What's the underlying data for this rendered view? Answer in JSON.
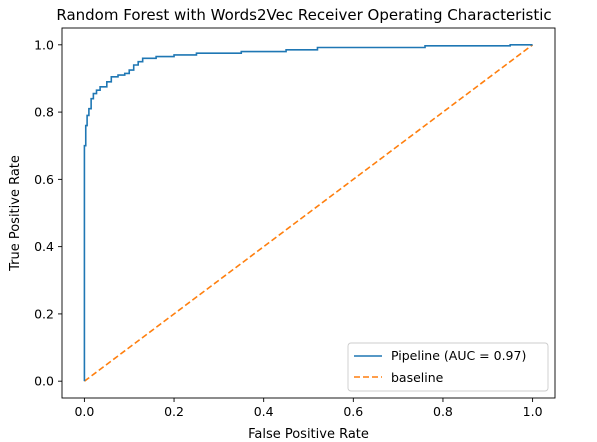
{
  "chart_data": {
    "type": "line",
    "title": "Random Forest with Words2Vec Receiver Operating Characteristic",
    "xlabel": "False Positive Rate",
    "ylabel": "True Positive Rate",
    "xlim": [
      -0.05,
      1.05
    ],
    "ylim": [
      -0.05,
      1.05
    ],
    "x_ticks": [
      "0.0",
      "0.2",
      "0.4",
      "0.6",
      "0.8",
      "1.0"
    ],
    "y_ticks": [
      "0.0",
      "0.2",
      "0.4",
      "0.6",
      "0.8",
      "1.0"
    ],
    "x_tick_values": [
      0,
      0.2,
      0.4,
      0.6,
      0.8,
      1.0
    ],
    "y_tick_values": [
      0,
      0.2,
      0.4,
      0.6,
      0.8,
      1.0
    ],
    "grid": false,
    "legend_position": "lower-right",
    "series": [
      {
        "name": "Pipeline (AUC = 0.97)",
        "style": "step",
        "color": "#1f77b4",
        "points": [
          [
            0,
            0
          ],
          [
            0,
            0.7
          ],
          [
            0.003,
            0.7
          ],
          [
            0.003,
            0.76
          ],
          [
            0.006,
            0.76
          ],
          [
            0.006,
            0.79
          ],
          [
            0.01,
            0.79
          ],
          [
            0.01,
            0.81
          ],
          [
            0.015,
            0.81
          ],
          [
            0.015,
            0.84
          ],
          [
            0.02,
            0.84
          ],
          [
            0.02,
            0.855
          ],
          [
            0.027,
            0.855
          ],
          [
            0.027,
            0.865
          ],
          [
            0.035,
            0.865
          ],
          [
            0.035,
            0.875
          ],
          [
            0.05,
            0.875
          ],
          [
            0.05,
            0.89
          ],
          [
            0.06,
            0.89
          ],
          [
            0.06,
            0.905
          ],
          [
            0.075,
            0.905
          ],
          [
            0.075,
            0.91
          ],
          [
            0.09,
            0.91
          ],
          [
            0.09,
            0.915
          ],
          [
            0.1,
            0.915
          ],
          [
            0.1,
            0.925
          ],
          [
            0.11,
            0.925
          ],
          [
            0.11,
            0.94
          ],
          [
            0.12,
            0.94
          ],
          [
            0.12,
            0.95
          ],
          [
            0.13,
            0.95
          ],
          [
            0.13,
            0.96
          ],
          [
            0.16,
            0.96
          ],
          [
            0.16,
            0.965
          ],
          [
            0.2,
            0.965
          ],
          [
            0.2,
            0.97
          ],
          [
            0.25,
            0.97
          ],
          [
            0.25,
            0.975
          ],
          [
            0.35,
            0.975
          ],
          [
            0.35,
            0.98
          ],
          [
            0.45,
            0.98
          ],
          [
            0.45,
            0.985
          ],
          [
            0.52,
            0.985
          ],
          [
            0.52,
            0.992
          ],
          [
            0.76,
            0.992
          ],
          [
            0.76,
            0.997
          ],
          [
            0.95,
            0.997
          ],
          [
            0.95,
            1.0
          ],
          [
            1.0,
            1.0
          ]
        ]
      },
      {
        "name": "baseline",
        "style": "dashed",
        "color": "#ff7f0e",
        "points": [
          [
            0,
            0
          ],
          [
            1,
            1
          ]
        ]
      }
    ]
  }
}
